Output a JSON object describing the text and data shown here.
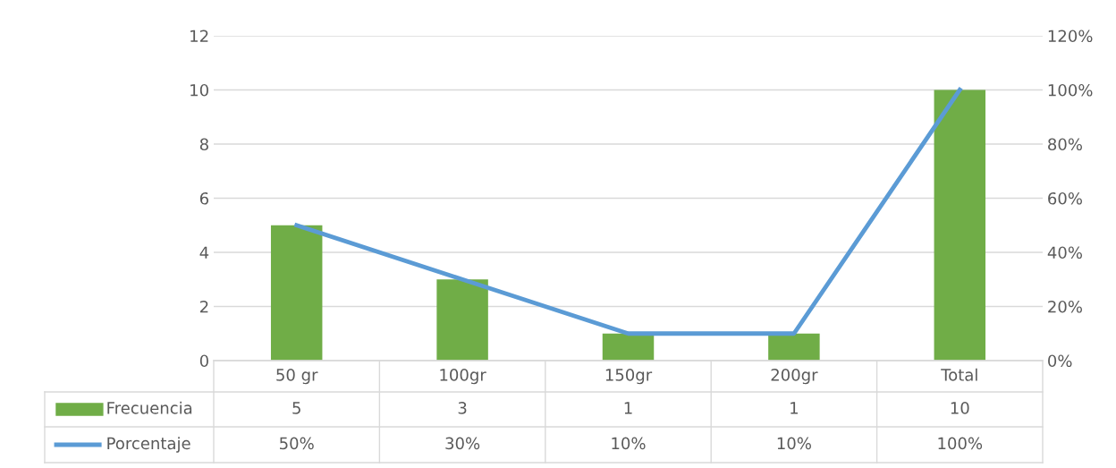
{
  "chart_data": {
    "type": "bar",
    "categories": [
      "50 gr",
      "100gr",
      "150gr",
      "200gr",
      "Total"
    ],
    "series": [
      {
        "name": "Frecuencia",
        "color": "#70ad47",
        "values": [
          5,
          3,
          1,
          1,
          10
        ],
        "value_labels": [
          "5",
          "3",
          "1",
          "1",
          "10"
        ]
      },
      {
        "name": "Porcentaje",
        "type": "line",
        "axis": "y2",
        "color": "#5b9bd5",
        "values": [
          50,
          30,
          10,
          10,
          100
        ],
        "value_labels": [
          "50%",
          "30%",
          "10%",
          "10%",
          "100%"
        ]
      }
    ],
    "ylim": [
      0,
      12
    ],
    "yticks": [
      0,
      2,
      4,
      6,
      8,
      10,
      12
    ],
    "y2lim": [
      0,
      120
    ],
    "y2ticks": [
      {
        "value": 0,
        "label": "0%"
      },
      {
        "value": 20,
        "label": "20%"
      },
      {
        "value": 40,
        "label": "40%"
      },
      {
        "value": 60,
        "label": "60%"
      },
      {
        "value": 80,
        "label": "80%"
      },
      {
        "value": 100,
        "label": "100%"
      },
      {
        "value": 120,
        "label": "120%"
      }
    ],
    "grid": "y",
    "legend": "bottom",
    "marker": "none",
    "line_style": "solid"
  }
}
